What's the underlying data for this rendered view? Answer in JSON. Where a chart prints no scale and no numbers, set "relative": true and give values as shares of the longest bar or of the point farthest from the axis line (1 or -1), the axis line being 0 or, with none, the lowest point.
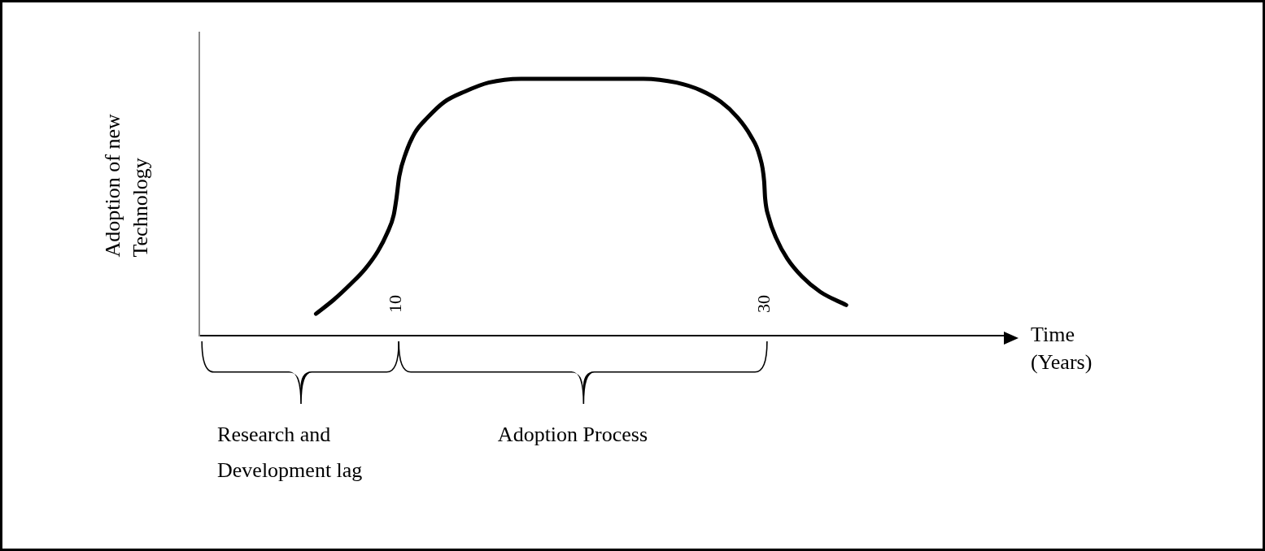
{
  "chart_data": {
    "type": "line",
    "relative": true,
    "xlabel": "Time (Years)",
    "ylabel": "Adoption of new Technology",
    "xlim": [
      -0.7,
      43
    ],
    "xticks": [
      10,
      30
    ],
    "grid": false,
    "legend": false,
    "marker": "none",
    "line_style": "solid",
    "series": [
      {
        "color": "#000000",
        "x": [
          5.63,
          6.6,
          7.5,
          8.3,
          9.0,
          9.5,
          9.85,
          10,
          10.15,
          10.5,
          11.0,
          11.7,
          12.6,
          13.7,
          15.0,
          16.75,
          23.4,
          25.2,
          26.5,
          27.6,
          28.5,
          29.2,
          29.7,
          29.95,
          30,
          30.2,
          30.6,
          31.2,
          32.0,
          33.0,
          34.4
        ],
        "values": [
          0.085,
          0.14,
          0.2,
          0.26,
          0.33,
          0.4,
          0.47,
          0.536,
          0.62,
          0.71,
          0.79,
          0.85,
          0.91,
          0.95,
          0.985,
          1,
          1,
          0.985,
          0.955,
          0.91,
          0.85,
          0.78,
          0.7,
          0.6,
          0.536,
          0.46,
          0.38,
          0.3,
          0.23,
          0.17,
          0.119
        ]
      }
    ],
    "annotations": [
      "Research and Development lag",
      "Adoption Process"
    ]
  }
}
